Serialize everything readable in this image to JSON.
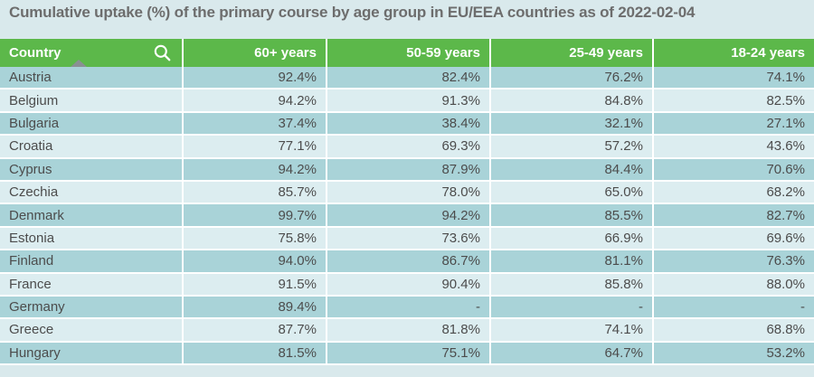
{
  "title": "Cumulative uptake (%) of the primary course by age group in EU/EEA countries as of 2022-02-04",
  "table": {
    "columns": [
      "Country",
      "60+ years",
      "50-59 years",
      "25-49 years",
      "18-24 years"
    ],
    "sort": {
      "column": "Country",
      "direction": "ascending"
    },
    "rows": [
      {
        "country": "Austria",
        "values": [
          "92.4%",
          "82.4%",
          "76.2%",
          "74.1%"
        ]
      },
      {
        "country": "Belgium",
        "values": [
          "94.2%",
          "91.3%",
          "84.8%",
          "82.5%"
        ]
      },
      {
        "country": "Bulgaria",
        "values": [
          "37.4%",
          "38.4%",
          "32.1%",
          "27.1%"
        ]
      },
      {
        "country": "Croatia",
        "values": [
          "77.1%",
          "69.3%",
          "57.2%",
          "43.6%"
        ]
      },
      {
        "country": "Cyprus",
        "values": [
          "94.2%",
          "87.9%",
          "84.4%",
          "70.6%"
        ]
      },
      {
        "country": "Czechia",
        "values": [
          "85.7%",
          "78.0%",
          "65.0%",
          "68.2%"
        ]
      },
      {
        "country": "Denmark",
        "values": [
          "99.7%",
          "94.2%",
          "85.5%",
          "82.7%"
        ]
      },
      {
        "country": "Estonia",
        "values": [
          "75.8%",
          "73.6%",
          "66.9%",
          "69.6%"
        ]
      },
      {
        "country": "Finland",
        "values": [
          "94.0%",
          "86.7%",
          "81.1%",
          "76.3%"
        ]
      },
      {
        "country": "France",
        "values": [
          "91.5%",
          "90.4%",
          "85.8%",
          "88.0%"
        ]
      },
      {
        "country": "Germany",
        "values": [
          "89.4%",
          "-",
          "-",
          "-"
        ]
      },
      {
        "country": "Greece",
        "values": [
          "87.7%",
          "81.8%",
          "74.1%",
          "68.8%"
        ]
      },
      {
        "country": "Hungary",
        "values": [
          "81.5%",
          "75.1%",
          "64.7%",
          "53.2%"
        ]
      }
    ]
  },
  "icons": {
    "search": "magnifying-glass",
    "sort": "triangle-up"
  },
  "colors": {
    "header_bg": "#5cb84a",
    "header_text": "#ffffff",
    "row_dark": "#a9d3d8",
    "row_light": "#dcedf0",
    "page_bg": "#d9e9ec",
    "title_text": "#6d6d6d",
    "cell_text": "#4c4c4c",
    "sort_arrow": "#8a9094",
    "separator": "#ffffff"
  }
}
